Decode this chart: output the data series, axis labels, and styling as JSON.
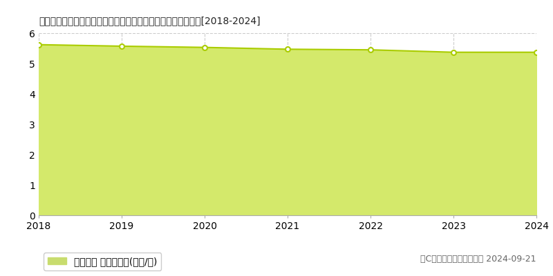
{
  "title": "青森県八戸市大字河原木字中崎２６番３　基準地価　地価推移[2018-2024]",
  "years": [
    2018,
    2019,
    2020,
    2021,
    2022,
    2023,
    2024
  ],
  "values": [
    5.62,
    5.57,
    5.53,
    5.47,
    5.45,
    5.37,
    5.37
  ],
  "ylim": [
    0,
    6
  ],
  "yticks": [
    0,
    1,
    2,
    3,
    4,
    5,
    6
  ],
  "fill_color": "#d4e96b",
  "line_color": "#aacc00",
  "marker_color": "#ffffff",
  "marker_edge_color": "#aacc00",
  "bg_color": "#ffffff",
  "plot_bg_color": "#ffffff",
  "grid_color": "#cccccc",
  "legend_label": "基準地価 平均坪単価(万円/坪)",
  "legend_color": "#c8dc6e",
  "copyright_text": "（C）土地価格ドットコム 2024-09-21",
  "title_fontsize": 12,
  "tick_fontsize": 10,
  "legend_fontsize": 10,
  "copyright_fontsize": 9
}
